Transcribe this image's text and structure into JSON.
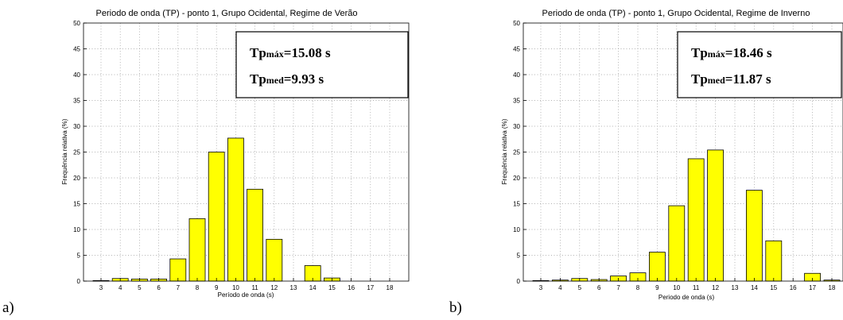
{
  "chart_data": [
    {
      "type": "bar",
      "panel_label": "a)",
      "title": "Periodo de onda (TP) - ponto 1, Grupo Ocidental, Regime de Verão",
      "xlabel": "Período de onda (s)",
      "ylabel": "Frequência relativa (%)",
      "categories": [
        "3",
        "4",
        "5",
        "6",
        "7",
        "8",
        "9",
        "10",
        "11",
        "12",
        "13",
        "14",
        "15",
        "16",
        "17",
        "18"
      ],
      "values": [
        0.1,
        0.5,
        0.4,
        0.4,
        4.3,
        12.1,
        25.0,
        27.7,
        17.8,
        8.1,
        0,
        3.0,
        0.6,
        0,
        0,
        0
      ],
      "ylim": [
        0,
        50
      ],
      "yticks": [
        "0",
        "5",
        "10",
        "15",
        "20",
        "25",
        "30",
        "35",
        "40",
        "45",
        "50"
      ],
      "grid": true,
      "stats": [
        {
          "main": "Tp",
          "sub": "máx",
          "value": "=15.08 s"
        },
        {
          "main": "Tp",
          "sub": "med",
          "value": "=9.93 s"
        }
      ]
    },
    {
      "type": "bar",
      "panel_label": "b)",
      "title": "Periodo de onda (TP) - ponto 1, Grupo Ocidental, Regime de Inverno",
      "xlabel": "Periodo de onda (s)",
      "ylabel": "Frequência relativa (%)",
      "categories": [
        "3",
        "4",
        "5",
        "6",
        "7",
        "8",
        "9",
        "10",
        "11",
        "12",
        "13",
        "14",
        "15",
        "16",
        "17",
        "18"
      ],
      "values": [
        0.1,
        0.2,
        0.5,
        0.3,
        1.0,
        1.6,
        5.6,
        14.6,
        23.7,
        25.4,
        0,
        17.6,
        7.8,
        0,
        1.5,
        0.2
      ],
      "ylim": [
        0,
        50
      ],
      "yticks": [
        "0",
        "5",
        "10",
        "15",
        "20",
        "25",
        "30",
        "35",
        "40",
        "45",
        "50"
      ],
      "grid": true,
      "stats": [
        {
          "main": "Tp",
          "sub": "máx",
          "value": "=18.46 s"
        },
        {
          "main": "Tp",
          "sub": "med",
          "value": "=11.87 s"
        }
      ]
    }
  ]
}
